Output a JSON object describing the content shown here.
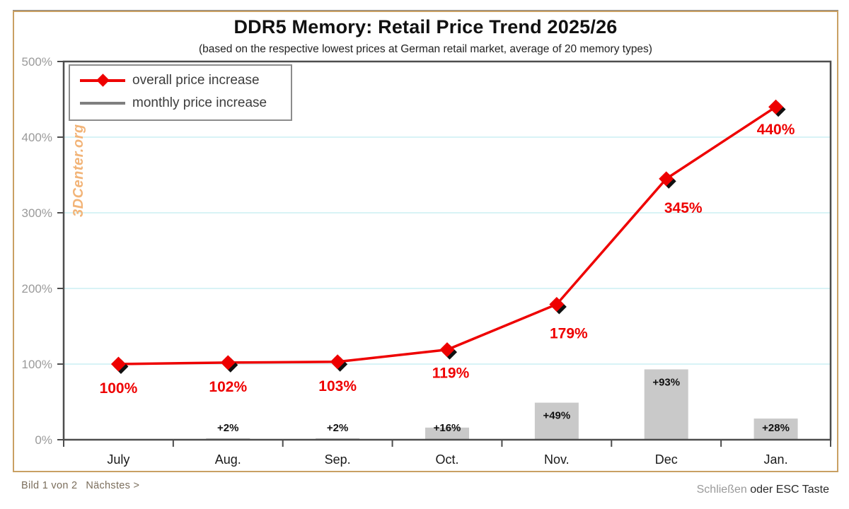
{
  "lightbox": {
    "footer_left": {
      "counter": "Bild 1 von 2",
      "next_label": "Nächstes >"
    },
    "footer_right": {
      "close_label": "Schließen",
      "hint": " oder ESC Taste"
    }
  },
  "chart_data": {
    "type": "line+bar",
    "title": "DDR5 Memory: Retail Price Trend 2025/26",
    "subtitle": "(based on the respective lowest prices at German retail market, average of 20 memory types)",
    "watermark": "3DCenter.org",
    "categories": [
      "July",
      "Aug.",
      "Sep.",
      "Oct.",
      "Nov.",
      "Dec",
      "Jan."
    ],
    "series": [
      {
        "name": "overall price increase",
        "type": "line",
        "color": "#ee0000",
        "values": [
          100,
          102,
          103,
          119,
          179,
          345,
          440
        ],
        "labels": [
          "100%",
          "102%",
          "103%",
          "119%",
          "179%",
          "345%",
          "440%"
        ]
      },
      {
        "name": "monthly price increase",
        "type": "bar",
        "color": "#c9c9c9",
        "values": [
          null,
          2,
          2,
          16,
          49,
          93,
          28
        ],
        "labels": [
          "",
          "+2%",
          "+2%",
          "+16%",
          "+49%",
          "+93%",
          "+28%"
        ]
      }
    ],
    "ylim": [
      0,
      500
    ],
    "ytick_step": 100,
    "ytick_suffix": "%",
    "grid": "horizontal",
    "gridline_color": "#d8f3f6",
    "axis_color": "#4d4d4d",
    "ytick_label_color": "#9a9a9a",
    "xtick_label_color": "#1a1a1a",
    "bar_label_color": "#111111",
    "legend_position": "top-left"
  }
}
